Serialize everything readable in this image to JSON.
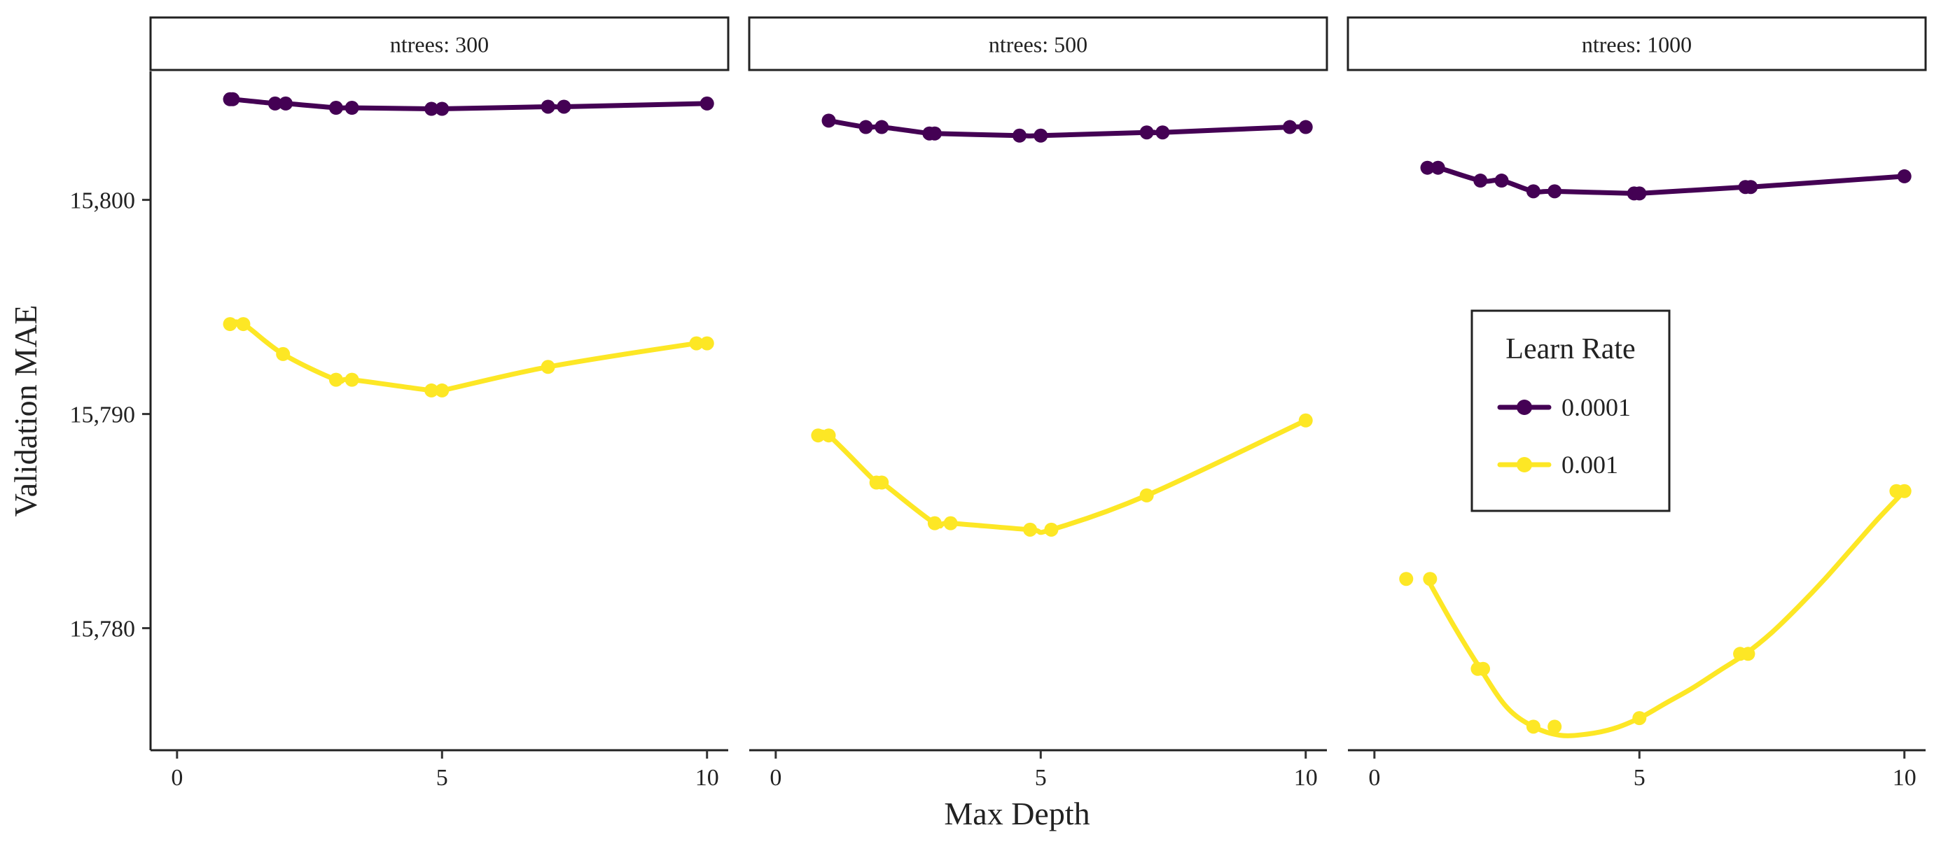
{
  "chart_data": {
    "type": "line",
    "xlabel": "Max Depth",
    "ylabel": "Validation MAE",
    "x_ticks": [
      0,
      5,
      10
    ],
    "y_ticks": [
      15780,
      15790,
      15800
    ],
    "y_tick_labels": [
      "15,780",
      "15,790",
      "15,800"
    ],
    "xlim": [
      -0.5,
      10.4
    ],
    "ylim": [
      15774.3,
      15806.0
    ],
    "legend": {
      "title": "Learn Rate",
      "placement": "inside-right",
      "entries": [
        {
          "label": "0.0001",
          "color": "#440154"
        },
        {
          "label": "0.001",
          "color": "#FDE725"
        }
      ]
    },
    "panels": [
      {
        "strip": "ntrees: 300",
        "series": [
          {
            "name": "0.0001",
            "color": "#440154",
            "x": [
              1.0,
              1.05,
              1.85,
              2.05,
              3.0,
              3.3,
              4.8,
              5.0,
              7.0,
              7.3,
              10.0
            ],
            "y": [
              15804.7,
              15804.7,
              15804.5,
              15804.5,
              15804.3,
              15804.3,
              15804.25,
              15804.25,
              15804.35,
              15804.35,
              15804.5
            ]
          },
          {
            "name": "0.001",
            "color": "#FDE725",
            "x": [
              1.0,
              1.25,
              2.0,
              3.0,
              3.3,
              4.8,
              5.0,
              7.0,
              9.8,
              10.0
            ],
            "y": [
              15794.2,
              15794.2,
              15792.8,
              15791.6,
              15791.6,
              15791.1,
              15791.1,
              15792.2,
              15793.3,
              15793.3
            ]
          }
        ]
      },
      {
        "strip": "ntrees: 500",
        "series": [
          {
            "name": "0.0001",
            "color": "#440154",
            "x": [
              1.0,
              1.7,
              2.0,
              2.9,
              3.0,
              4.6,
              5.0,
              7.0,
              7.3,
              9.7,
              10.0
            ],
            "y": [
              15803.7,
              15803.4,
              15803.4,
              15803.1,
              15803.1,
              15803.0,
              15803.0,
              15803.15,
              15803.15,
              15803.4,
              15803.4
            ]
          },
          {
            "name": "0.001",
            "color": "#FDE725",
            "x": [
              0.8,
              1.0,
              1.9,
              2.0,
              3.0,
              3.3,
              4.8,
              5.2,
              7.0,
              10.0
            ],
            "y": [
              15789.0,
              15789.0,
              15786.8,
              15786.8,
              15784.9,
              15784.9,
              15784.6,
              15784.6,
              15786.2,
              15789.7
            ]
          }
        ]
      },
      {
        "strip": "ntrees: 1000",
        "series": [
          {
            "name": "0.0001",
            "color": "#440154",
            "x": [
              1.0,
              1.2,
              2.0,
              2.4,
              3.0,
              3.4,
              4.9,
              5.0,
              7.0,
              7.1,
              10.0
            ],
            "y": [
              15801.5,
              15801.5,
              15800.9,
              15800.9,
              15800.4,
              15800.4,
              15800.3,
              15800.3,
              15800.6,
              15800.6,
              15801.1
            ]
          },
          {
            "name": "0.001",
            "color": "#FDE725",
            "x": [
              0.6,
              1.05,
              1.95,
              2.05,
              3.0,
              3.4,
              5.0,
              6.9,
              7.05,
              9.85,
              10.0
            ],
            "y": [
              15782.3,
              15782.3,
              15778.1,
              15778.1,
              15775.4,
              15775.4,
              15775.8,
              15778.8,
              15778.8,
              15786.4,
              15786.4
            ]
          }
        ],
        "smooth": {
          "0.001": {
            "x": [
              1.0,
              1.5,
              2.0,
              2.5,
              3.0,
              3.5,
              4.0,
              4.5,
              5.0,
              5.5,
              6.0,
              6.5,
              7.0,
              7.5,
              8.0,
              8.5,
              9.0,
              9.5,
              10.0
            ],
            "y": [
              15782.3,
              15780.1,
              15778.1,
              15776.3,
              15775.4,
              15775.0,
              15775.05,
              15775.3,
              15775.8,
              15776.5,
              15777.2,
              15778.0,
              15778.8,
              15779.8,
              15781.0,
              15782.3,
              15783.7,
              15785.1,
              15786.4
            ]
          }
        }
      }
    ]
  }
}
